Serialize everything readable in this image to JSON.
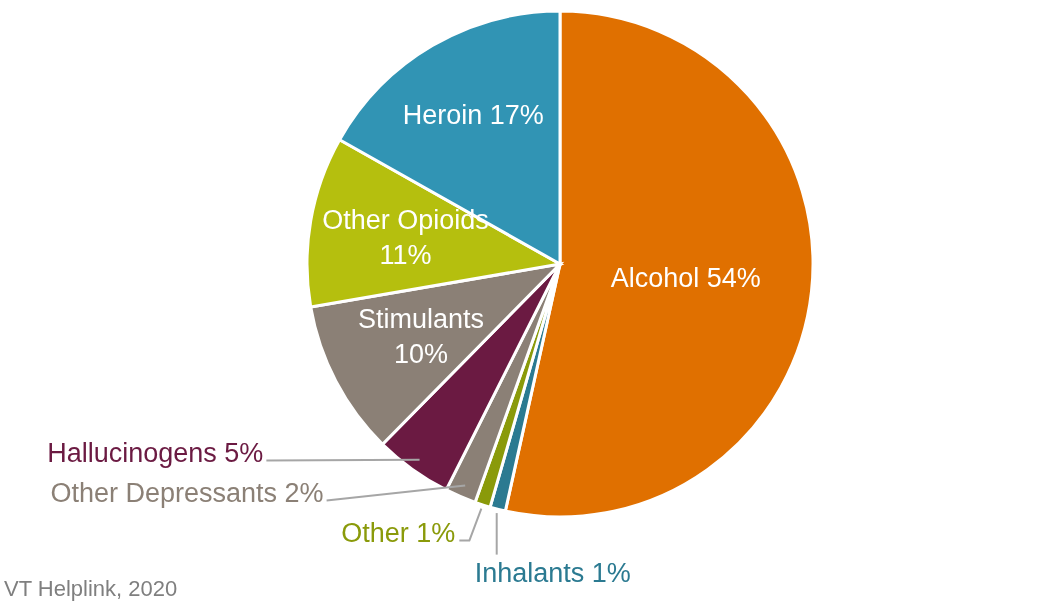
{
  "chart_data": {
    "type": "pie",
    "categories": [
      "Alcohol",
      "Inhalants",
      "Other",
      "Other Depressants",
      "Hallucinogens",
      "Stimulants",
      "Other Opioids",
      "Heroin"
    ],
    "values": [
      54,
      1,
      1,
      2,
      5,
      10,
      11,
      17
    ],
    "colors": [
      "#e07000",
      "#2b7a91",
      "#8a9a0a",
      "#8b8076",
      "#6b1a42",
      "#8b8076",
      "#b5bf0e",
      "#3194b4"
    ],
    "value_labels": [
      "54%",
      "1%",
      "1%",
      "2%",
      "5%",
      "10%",
      "11%",
      "17%"
    ],
    "annotations": [
      "VT Helplink, 2020"
    ]
  }
}
